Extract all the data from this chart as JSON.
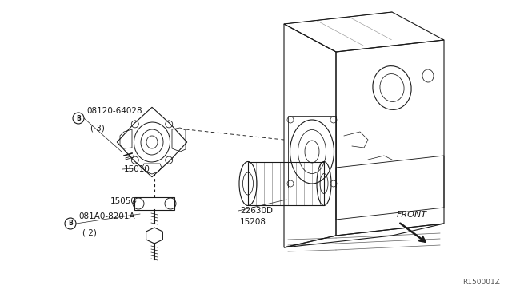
{
  "bg_color": "#ffffff",
  "line_color": "#1a1a1a",
  "text_color": "#1a1a1a",
  "fig_width": 6.4,
  "fig_height": 3.72,
  "dpi": 100,
  "watermark": "R150001Z",
  "labels": {
    "bolt1_num": "08120-64028",
    "bolt1_qty": "( 3)",
    "part15010": "15010",
    "part15050": "15050",
    "bolt2_num": "081A0-8201A",
    "bolt2_qty": "( 2)",
    "part22630": "22630D",
    "part15208": "15208",
    "front": "FRONT"
  }
}
